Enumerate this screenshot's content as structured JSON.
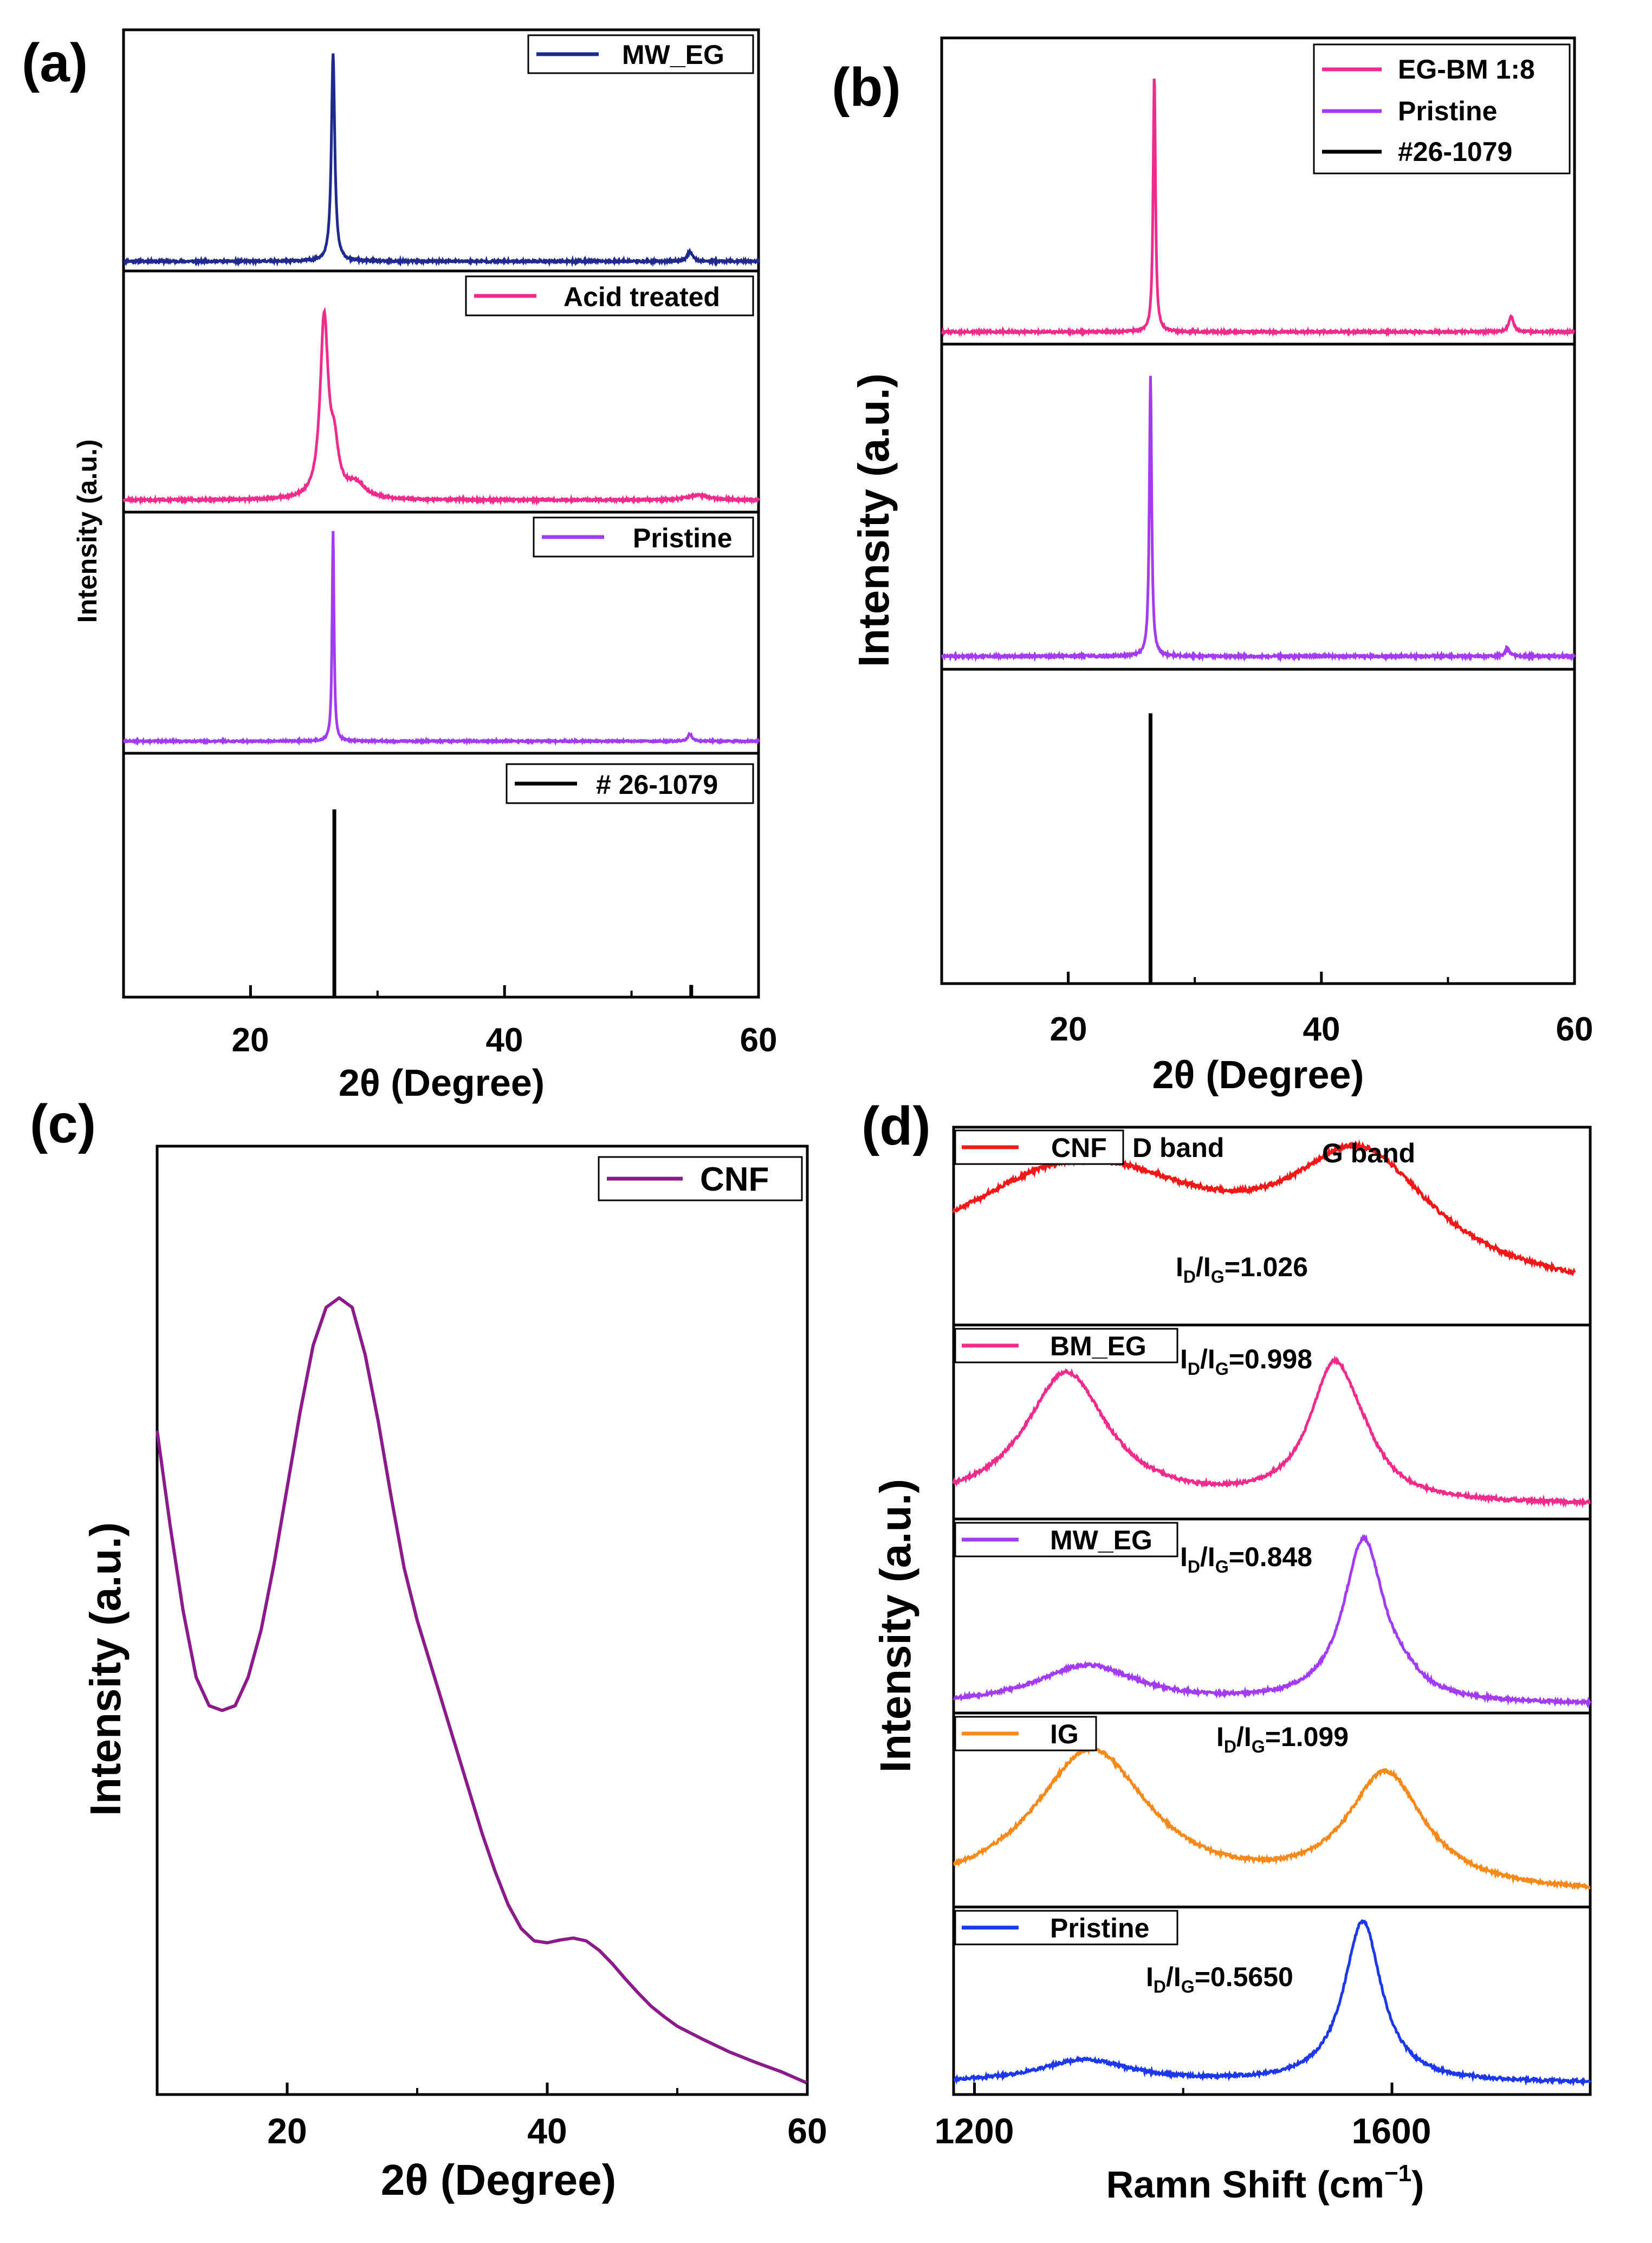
{
  "colors": {
    "navy": "#1f2a8c",
    "pink": "#ee2c8c",
    "violet": "#a33cf0",
    "black": "#000000",
    "purple": "#8b1a8a",
    "red": "#f01818",
    "orange": "#f58a1c",
    "blue": "#1c38e8"
  },
  "chart_data": [
    {
      "id": "a",
      "panel_label": "(a)",
      "type": "line",
      "title": "",
      "xlabel": "2θ (Degree)",
      "ylabel": "Intensity (a.u.)",
      "xlim": [
        10,
        60
      ],
      "xticks": [
        20,
        40,
        60
      ],
      "xtick_labels": [
        "20",
        "40",
        "60"
      ],
      "subplots": [
        {
          "name": "MW_EG",
          "color_key": "navy",
          "kind": "xrd",
          "peaks": [
            {
              "x": 26.5,
              "h": 0.86,
              "w": 0.16
            },
            {
              "x": 54.6,
              "h": 0.04,
              "w": 0.25
            }
          ],
          "baseline": 0.04,
          "noise": 0.004
        },
        {
          "name": "Acid treated",
          "color_key": "pink",
          "kind": "xrd",
          "peaks": [
            {
              "x": 25.8,
              "h": 0.74,
              "w": 0.38
            },
            {
              "x": 26.6,
              "h": 0.18,
              "w": 0.4
            },
            {
              "x": 28.3,
              "h": 0.06,
              "w": 0.9
            },
            {
              "x": 55.3,
              "h": 0.02,
              "w": 1.0
            }
          ],
          "baseline": 0.05,
          "noise": 0.004
        },
        {
          "name": "Pristine",
          "color_key": "violet",
          "kind": "xrd",
          "peaks": [
            {
              "x": 26.5,
              "h": 0.87,
              "w": 0.09
            },
            {
              "x": 54.6,
              "h": 0.03,
              "w": 0.2
            }
          ],
          "baseline": 0.05,
          "noise": 0.003
        },
        {
          "name": "# 26-1079",
          "color_key": "black",
          "kind": "stick",
          "sticks": [
            {
              "x": 26.6,
              "h": 0.77
            },
            {
              "x": 54.7,
              "h": 0.05
            }
          ]
        }
      ]
    },
    {
      "id": "b",
      "panel_label": "(b)",
      "type": "line",
      "title": "",
      "xlabel": "2θ (Degree)",
      "ylabel": "Intensity (a.u.)",
      "xlim": [
        10,
        60
      ],
      "xticks": [
        20,
        40,
        60
      ],
      "xtick_labels": [
        "20",
        "40",
        "60"
      ],
      "legend": [
        "EG-BM 1:8",
        "Pristine",
        "#26-1079"
      ],
      "subplots": [
        {
          "name": "EG-BM 1:8",
          "color_key": "pink",
          "kind": "xrd",
          "peaks": [
            {
              "x": 26.8,
              "h": 0.84,
              "w": 0.11
            },
            {
              "x": 55.0,
              "h": 0.05,
              "w": 0.22
            }
          ],
          "baseline": 0.04,
          "noise": 0.003
        },
        {
          "name": "Pristine",
          "color_key": "violet",
          "kind": "xrd",
          "peaks": [
            {
              "x": 26.5,
              "h": 0.86,
              "w": 0.11
            },
            {
              "x": 54.7,
              "h": 0.025,
              "w": 0.2
            }
          ],
          "baseline": 0.04,
          "noise": 0.003
        },
        {
          "name": "#26-1079",
          "color_key": "black",
          "kind": "stick",
          "sticks": [
            {
              "x": 26.5,
              "h": 0.86
            }
          ]
        }
      ]
    },
    {
      "id": "c",
      "panel_label": "(c)",
      "type": "line",
      "title": "",
      "xlabel": "2θ (Degree)",
      "ylabel": "Intensity (a.u.)",
      "xlim": [
        10,
        60
      ],
      "xticks": [
        20,
        40,
        60
      ],
      "xtick_labels": [
        "20",
        "40",
        "60"
      ],
      "series": [
        {
          "name": "CNF",
          "color_key": "purple",
          "x": [
            10,
            11,
            12,
            13,
            14,
            15,
            16,
            17,
            18,
            19,
            20,
            21,
            22,
            23,
            24,
            25,
            26,
            27,
            28,
            29,
            30,
            31,
            32,
            33,
            34,
            35,
            36,
            37,
            38,
            39,
            40,
            41,
            42,
            43,
            44,
            45,
            46,
            47,
            48,
            49,
            50,
            52,
            54,
            56,
            58,
            60
          ],
          "y": [
            0.7,
            0.6,
            0.51,
            0.44,
            0.41,
            0.405,
            0.41,
            0.44,
            0.49,
            0.56,
            0.64,
            0.72,
            0.79,
            0.83,
            0.84,
            0.83,
            0.78,
            0.71,
            0.63,
            0.555,
            0.5,
            0.455,
            0.41,
            0.365,
            0.32,
            0.275,
            0.235,
            0.2,
            0.175,
            0.162,
            0.16,
            0.163,
            0.165,
            0.162,
            0.152,
            0.138,
            0.122,
            0.107,
            0.093,
            0.082,
            0.072,
            0.058,
            0.045,
            0.034,
            0.024,
            0.012
          ]
        }
      ]
    },
    {
      "id": "d",
      "panel_label": "(d)",
      "type": "line",
      "title": "",
      "xlabel": "Ramn Shift (cm",
      "xlabel_sup": "−1",
      "xlabel_end": ")",
      "ylabel": "Intensity (a.u.)",
      "xlim": [
        1180,
        1790
      ],
      "xticks": [
        1200,
        1600
      ],
      "xtick_labels": [
        "1200",
        "1600"
      ],
      "band_labels": {
        "d": "D band",
        "g": "G band"
      },
      "subplots": [
        {
          "name": "CNF",
          "color_key": "red",
          "ratio_value": "=1.026",
          "x_end": 1775,
          "peaks": [
            {
              "x": 1300,
              "h": 0.68,
              "w": 165
            },
            {
              "x": 1570,
              "h": 0.62,
              "w": 85
            }
          ],
          "baseline": 0.1,
          "noise": 0.01
        },
        {
          "name": "BM_EG",
          "color_key": "pink",
          "ratio_value": "=0.998",
          "peaks": [
            {
              "x": 1288,
              "h": 0.68,
              "w": 48
            },
            {
              "x": 1544,
              "h": 0.66,
              "w": 28
            },
            {
              "x": 1570,
              "h": 0.13,
              "w": 25
            }
          ],
          "baseline": 0.07,
          "noise": 0.008
        },
        {
          "name": "MW_EG",
          "color_key": "violet",
          "ratio_value": "=0.848",
          "peaks": [
            {
              "x": 1308,
              "h": 0.2,
              "w": 60
            },
            {
              "x": 1573,
              "h": 0.84,
              "w": 24
            },
            {
              "x": 1612,
              "h": 0.05,
              "w": 20
            }
          ],
          "baseline": 0.04,
          "noise": 0.008
        },
        {
          "name": "IG",
          "color_key": "orange",
          "ratio_value": "=1.099",
          "peaks": [
            {
              "x": 1312,
              "h": 0.74,
              "w": 68
            },
            {
              "x": 1594,
              "h": 0.6,
              "w": 45
            }
          ],
          "baseline": 0.06,
          "noise": 0.008
        },
        {
          "name": "Pristine",
          "color_key": "blue",
          "ratio_value": "=0.5650",
          "peaks": [
            {
              "x": 1305,
              "h": 0.12,
              "w": 55
            },
            {
              "x": 1572,
              "h": 0.86,
              "w": 22
            }
          ],
          "baseline": 0.06,
          "noise": 0.008
        }
      ]
    }
  ]
}
